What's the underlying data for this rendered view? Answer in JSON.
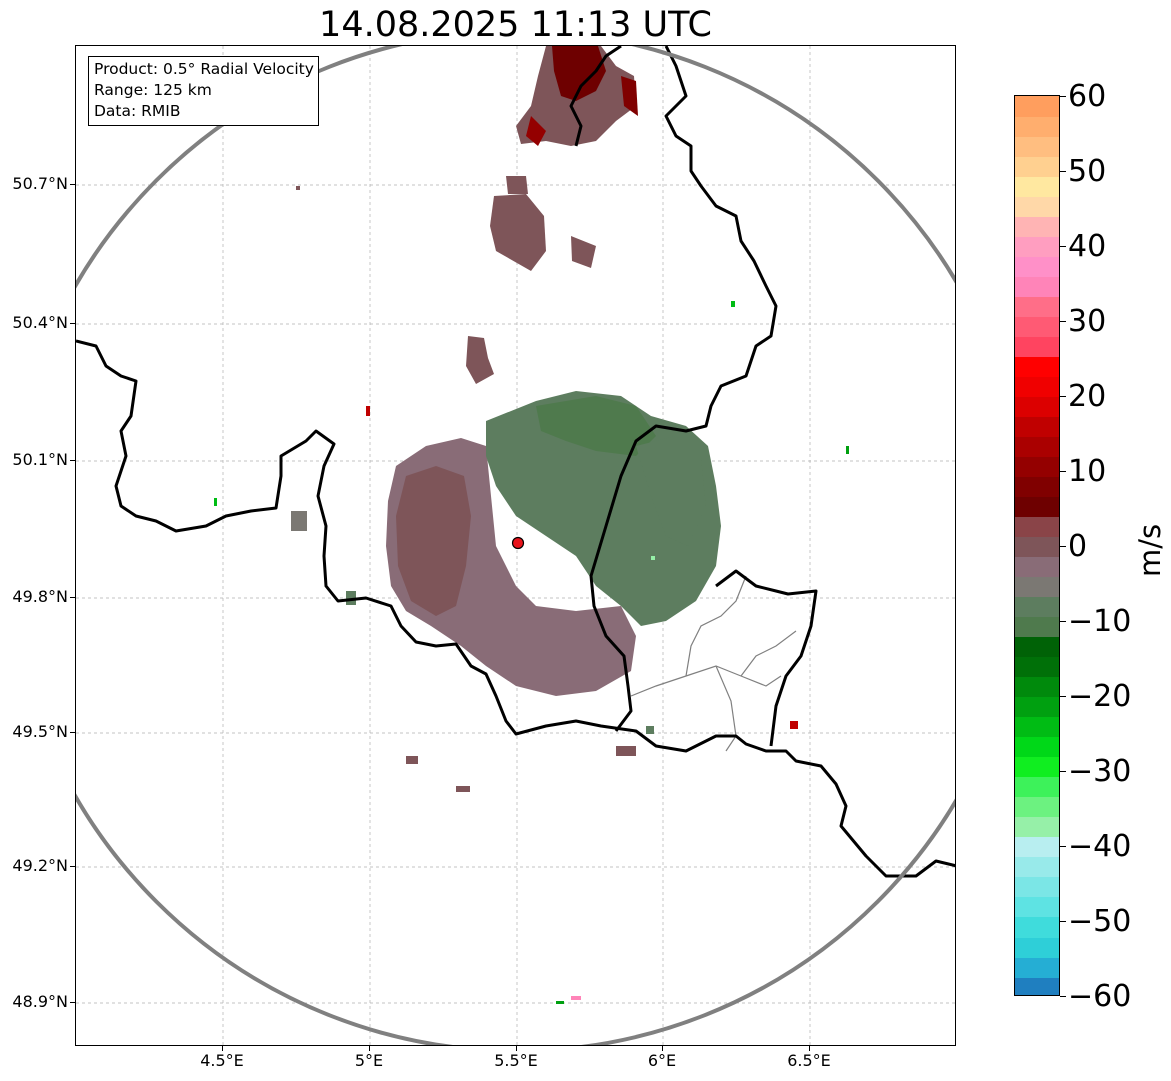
{
  "title": "14.08.2025 11:13 UTC",
  "info": {
    "product": "Product: 0.5° Radial Velocity",
    "range": "Range: 125 km",
    "source": "Data: RMIB"
  },
  "axes": {
    "lat_labels": [
      "50.7°N",
      "50.4°N",
      "50.1°N",
      "49.8°N",
      "49.5°N",
      "49.2°N",
      "48.9°N"
    ],
    "lon_labels": [
      "4.5°E",
      "5°E",
      "5.5°E",
      "6°E",
      "6.5°E"
    ]
  },
  "colorbar": {
    "unit": "m/s",
    "tick_labels": [
      "60",
      "50",
      "40",
      "30",
      "20",
      "10",
      "0",
      "−10",
      "−20",
      "−30",
      "−40",
      "−50",
      "−60"
    ],
    "range": [
      -60,
      60
    ],
    "colors": [
      "#1f7fc0",
      "#25aed4",
      "#2ecfd8",
      "#3fdcdc",
      "#5ee3e3",
      "#7be6e6",
      "#98eaea",
      "#b8eef0",
      "#96f0a8",
      "#6cf280",
      "#3df25a",
      "#10ee20",
      "#00d818",
      "#00bc14",
      "#00a010",
      "#008a0c",
      "#007008",
      "#006206",
      "#4f7a4d",
      "#5d7d5f",
      "#7b7873",
      "#896c77",
      "#7e5559",
      "#8a4448",
      "#6e0000",
      "#800000",
      "#940000",
      "#aa0000",
      "#c00000",
      "#dc0000",
      "#f00000",
      "#ff0000",
      "#ff4460",
      "#ff5a74",
      "#ff6e88",
      "#ff84b8",
      "#ff90c8",
      "#ff9ec0",
      "#ffb4b4",
      "#ffd8a8",
      "#ffe8a0",
      "#ffd090",
      "#ffbe80",
      "#ffae6e",
      "#ff9e5e"
    ]
  },
  "radar": {
    "site_name": "radar-site",
    "site_color": "#e8141c",
    "edge_color": "#808080"
  }
}
